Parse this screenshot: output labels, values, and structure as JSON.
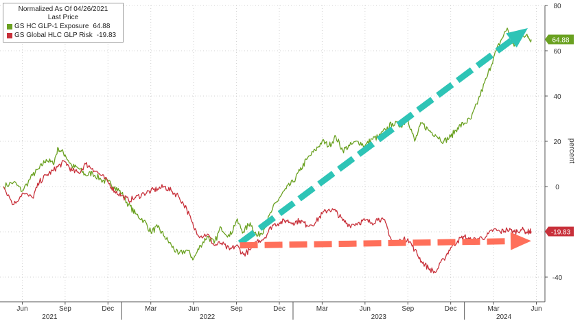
{
  "chart_data": {
    "type": "line",
    "title": "Normalized As Of 04/26/2021",
    "subtitle": "Last Price",
    "ylabel": "percent",
    "ylim": [
      -50,
      80
    ],
    "y_ticks": [
      80,
      60,
      40,
      20,
      0,
      -20,
      -40
    ],
    "y_tick_labels": [
      "80",
      "60",
      "40",
      "20",
      "0",
      "",
      "-40"
    ],
    "x_ticks": [
      {
        "t": 2021.42,
        "label": "Jun"
      },
      {
        "t": 2021.67,
        "label": "Sep"
      },
      {
        "t": 2021.92,
        "label": "Dec"
      },
      {
        "t": 2022.17,
        "label": "Mar"
      },
      {
        "t": 2022.42,
        "label": "Jun"
      },
      {
        "t": 2022.67,
        "label": "Sep"
      },
      {
        "t": 2022.92,
        "label": "Dec"
      },
      {
        "t": 2023.17,
        "label": "Mar"
      },
      {
        "t": 2023.42,
        "label": "Jun"
      },
      {
        "t": 2023.67,
        "label": "Sep"
      },
      {
        "t": 2023.92,
        "label": "Dec"
      },
      {
        "t": 2024.17,
        "label": "Mar"
      },
      {
        "t": 2024.42,
        "label": "Jun"
      }
    ],
    "year_labels": [
      {
        "t": 2021.58,
        "label": "2021"
      },
      {
        "t": 2022.5,
        "label": "2022"
      },
      {
        "t": 2023.5,
        "label": "2023"
      },
      {
        "t": 2024.23,
        "label": "2024"
      }
    ],
    "year_dividers": [
      2022.0,
      2023.0,
      2024.0
    ],
    "xlim": [
      2021.29,
      2024.47
    ],
    "grid": true,
    "legend_position": "top-left",
    "series": [
      {
        "name": "GS HC GLP-1 Exposure",
        "last_value_label": "64.88",
        "color": "#6aa121",
        "x": [
          2021.31,
          2021.37,
          2021.42,
          2021.48,
          2021.52,
          2021.56,
          2021.6,
          2021.63,
          2021.67,
          2021.71,
          2021.75,
          2021.79,
          2021.83,
          2021.88,
          2021.92,
          2021.96,
          2022.0,
          2022.04,
          2022.08,
          2022.13,
          2022.17,
          2022.21,
          2022.25,
          2022.29,
          2022.33,
          2022.38,
          2022.42,
          2022.46,
          2022.5,
          2022.54,
          2022.58,
          2022.63,
          2022.67,
          2022.71,
          2022.75,
          2022.79,
          2022.83,
          2022.88,
          2022.92,
          2022.96,
          2023.0,
          2023.04,
          2023.08,
          2023.13,
          2023.17,
          2023.21,
          2023.25,
          2023.29,
          2023.33,
          2023.38,
          2023.42,
          2023.46,
          2023.5,
          2023.54,
          2023.58,
          2023.63,
          2023.67,
          2023.71,
          2023.75,
          2023.79,
          2023.83,
          2023.88,
          2023.92,
          2023.96,
          2024.0,
          2024.04,
          2024.08,
          2024.13,
          2024.17,
          2024.21,
          2024.25,
          2024.29,
          2024.33,
          2024.37,
          2024.39
        ],
        "y": [
          0,
          2,
          -2,
          5,
          8,
          12,
          10,
          17,
          14,
          9,
          8,
          5,
          6,
          3,
          2,
          0,
          -3,
          -8,
          -12,
          -15,
          -20,
          -18,
          -22,
          -26,
          -30,
          -28,
          -32,
          -26,
          -22,
          -25,
          -18,
          -22,
          -15,
          -20,
          -16,
          -22,
          -19,
          -10,
          -5,
          -1,
          2,
          7,
          12,
          16,
          20,
          18,
          22,
          16,
          18,
          20,
          18,
          21,
          22,
          25,
          28,
          27,
          30,
          20,
          28,
          25,
          23,
          20,
          22,
          26,
          28,
          30,
          38,
          48,
          57,
          64,
          70,
          62,
          68,
          66,
          65
        ],
        "smooth_noise": 1.4
      },
      {
        "name": "GS Global HLC GLP Risk",
        "last_value_label": "-19.83",
        "color": "#c8303a",
        "x": [
          2021.31,
          2021.37,
          2021.42,
          2021.48,
          2021.52,
          2021.56,
          2021.6,
          2021.63,
          2021.67,
          2021.71,
          2021.75,
          2021.79,
          2021.83,
          2021.88,
          2021.92,
          2021.96,
          2022.0,
          2022.04,
          2022.08,
          2022.13,
          2022.17,
          2022.21,
          2022.25,
          2022.29,
          2022.33,
          2022.38,
          2022.42,
          2022.46,
          2022.5,
          2022.54,
          2022.58,
          2022.63,
          2022.67,
          2022.71,
          2022.75,
          2022.79,
          2022.83,
          2022.88,
          2022.92,
          2022.96,
          2023.0,
          2023.04,
          2023.08,
          2023.13,
          2023.17,
          2023.21,
          2023.25,
          2023.29,
          2023.33,
          2023.38,
          2023.42,
          2023.46,
          2023.5,
          2023.54,
          2023.58,
          2023.63,
          2023.67,
          2023.71,
          2023.75,
          2023.79,
          2023.83,
          2023.88,
          2023.92,
          2023.96,
          2024.0,
          2024.04,
          2024.08,
          2024.13,
          2024.17,
          2024.21,
          2024.25,
          2024.29,
          2024.33,
          2024.37,
          2024.39
        ],
        "y": [
          0,
          -8,
          -3,
          -5,
          2,
          5,
          7,
          9,
          11,
          7,
          6,
          10,
          8,
          5,
          2,
          -2,
          -4,
          -6,
          -5,
          -3,
          -2,
          -1,
          0,
          -2,
          -4,
          -10,
          -18,
          -22,
          -21,
          -26,
          -25,
          -28,
          -26,
          -30,
          -28,
          -24,
          -23,
          -17,
          -16,
          -15,
          -16,
          -15,
          -17,
          -16,
          -12,
          -10,
          -11,
          -15,
          -17,
          -16,
          -15,
          -16,
          -14,
          -16,
          -25,
          -24,
          -23,
          -28,
          -33,
          -36,
          -38,
          -32,
          -27,
          -24,
          -22,
          -24,
          -23,
          -22,
          -19,
          -20,
          -19,
          -20,
          -19,
          -20,
          -19.83
        ],
        "smooth_noise": 1.3
      }
    ],
    "annotations": [
      {
        "type": "arrow",
        "color": "#2ec4b6",
        "from": [
          2022.69,
          -25
        ],
        "to": [
          2024.37,
          70
        ]
      },
      {
        "type": "arrow",
        "color": "#ff6f5a",
        "from": [
          2022.69,
          -26
        ],
        "to": [
          2024.39,
          -24
        ]
      }
    ]
  },
  "axis": {
    "right_label": "percent"
  }
}
